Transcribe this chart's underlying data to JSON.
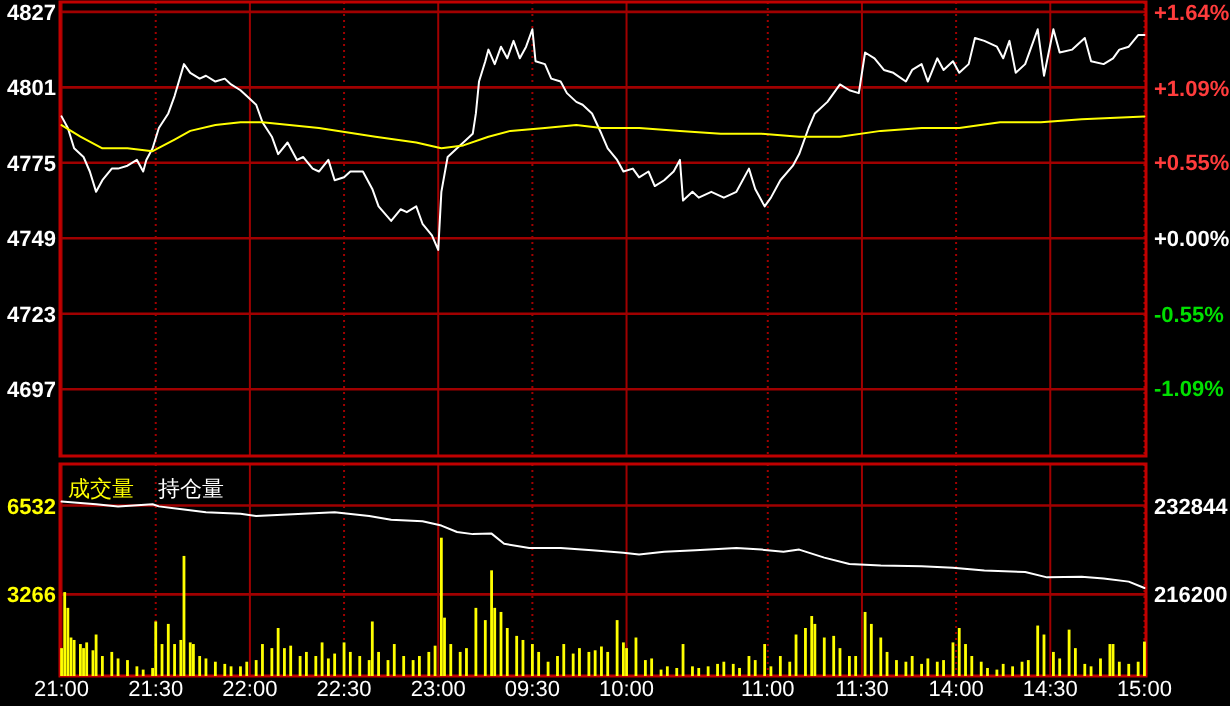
{
  "chart_data": [
    {
      "type": "line",
      "tick_labels": "y",
      "ylim": [
        4674,
        4830.4
      ],
      "yticks": [
        4827,
        4801,
        4775,
        4749,
        4723,
        4697
      ],
      "y2lim": [
        -1.58,
        1.71
      ],
      "y2ticks": [
        {
          "value": 1.64,
          "label": "+1.64%"
        },
        {
          "value": 1.09,
          "label": "+1.09%"
        },
        {
          "value": 0.55,
          "label": "+0.55%"
        },
        {
          "value": 0,
          "label": "+0.00%"
        },
        {
          "value": -0.55,
          "label": "-0.55%"
        },
        {
          "value": -1.09,
          "label": "-1.09%"
        }
      ],
      "grid": true,
      "categories": [
        null,
        null,
        null,
        null,
        null,
        null,
        null,
        null,
        null,
        null,
        null,
        null,
        null,
        null,
        null,
        null,
        null,
        null,
        null,
        null,
        null,
        null,
        null,
        null,
        null,
        null,
        null,
        null,
        null,
        null,
        null,
        null,
        null,
        null,
        null,
        null,
        null,
        null,
        null,
        null,
        null,
        null,
        null,
        null,
        null,
        null,
        null,
        null,
        null,
        null,
        null,
        null,
        null,
        null,
        null,
        null,
        null,
        null,
        null,
        null,
        null,
        null,
        null,
        null,
        null,
        null,
        null,
        null,
        null,
        null,
        null,
        null,
        null,
        null,
        null,
        null,
        null,
        null,
        null,
        null,
        null,
        null,
        null,
        null,
        null,
        null,
        null,
        null,
        null,
        null,
        null,
        null,
        null,
        null,
        null,
        null,
        null,
        null,
        null,
        null,
        null,
        null,
        null,
        null,
        null,
        null,
        null,
        null,
        null,
        null,
        null,
        null,
        null,
        null,
        null,
        null,
        null,
        null,
        null,
        null,
        null,
        null,
        null,
        null,
        null,
        null,
        null,
        null,
        null,
        null,
        null,
        null,
        null,
        null,
        null,
        null,
        null,
        null,
        null,
        null,
        null,
        null,
        null,
        null,
        null,
        null,
        null,
        null,
        null,
        null,
        null,
        null,
        null,
        null,
        null,
        null,
        null,
        null,
        null,
        null,
        null,
        null,
        null,
        null,
        null,
        null,
        null,
        null,
        null,
        null,
        null,
        null,
        null,
        null,
        null,
        null,
        null,
        null,
        null,
        null,
        null,
        null,
        null,
        null,
        null,
        null,
        null,
        null,
        null,
        null,
        null,
        null,
        null,
        null,
        null,
        null,
        null,
        null,
        null,
        null,
        null,
        null,
        null,
        null,
        null,
        null,
        null,
        null,
        null,
        null,
        null,
        null,
        null,
        null,
        null,
        null,
        null,
        null,
        null,
        null,
        null,
        null,
        null,
        null,
        null,
        null,
        null,
        null,
        null,
        null,
        null,
        null,
        null,
        null,
        null,
        null,
        null,
        null,
        null,
        null,
        null,
        null,
        null,
        null,
        null,
        null,
        null,
        null,
        null,
        null,
        null,
        null,
        null,
        null,
        null,
        null,
        null,
        null,
        null,
        null,
        null,
        null,
        null,
        null,
        null,
        null,
        null,
        null,
        null,
        null,
        null,
        null,
        null,
        null,
        null,
        null,
        null,
        null,
        null,
        null,
        null,
        null,
        null,
        null,
        null,
        null,
        null,
        null,
        null,
        null,
        null,
        null,
        null,
        null,
        null,
        null,
        null,
        null,
        null,
        null,
        null,
        null,
        null,
        null,
        null,
        null,
        null,
        null,
        null,
        null,
        null,
        null,
        null,
        null,
        null,
        null,
        null,
        null,
        null,
        null,
        null,
        null,
        null,
        null,
        null,
        null,
        null,
        null,
        null,
        null,
        null,
        null,
        null,
        null,
        null,
        null,
        null,
        null,
        null,
        null,
        null,
        null,
        null,
        null,
        null,
        null
      ],
      "series": [
        {
          "color": "#ffffff",
          "values": [
            4791,
            null,
            4787,
            null,
            4780,
            null,
            null,
            4777,
            null,
            4772,
            null,
            4765,
            null,
            4769,
            null,
            null,
            4773,
            null,
            4773,
            null,
            null,
            4774,
            null,
            null,
            4776,
            null,
            4772,
            4776,
            null,
            4780,
            null,
            4787,
            null,
            null,
            4792,
            null,
            4798,
            null,
            null,
            4809,
            null,
            4806,
            null,
            null,
            4804,
            null,
            4805,
            null,
            null,
            4803,
            null,
            null,
            4804,
            null,
            4802,
            null,
            null,
            4800,
            null,
            4798,
            null,
            null,
            4795,
            null,
            4789,
            null,
            null,
            4784,
            null,
            4778,
            null,
            null,
            4782,
            null,
            null,
            4776,
            null,
            4777,
            null,
            null,
            4773,
            null,
            4772,
            null,
            null,
            4776,
            null,
            4769,
            null,
            null,
            4770,
            null,
            4772,
            null,
            null,
            null,
            4772,
            null,
            null,
            4766,
            null,
            4760,
            null,
            null,
            null,
            4755,
            null,
            null,
            4759,
            null,
            4758,
            null,
            null,
            4760,
            null,
            4754,
            null,
            null,
            4750,
            null,
            4745,
            4765,
            null,
            4777,
            null,
            null,
            4780,
            null,
            4782,
            null,
            null,
            4785,
            4792,
            4803,
            null,
            4810,
            4814,
            null,
            4809,
            null,
            4815,
            null,
            4811,
            null,
            4817,
            null,
            4811,
            null,
            4815,
            null,
            4821,
            4810,
            null,
            null,
            4809,
            null,
            4804,
            null,
            null,
            4803,
            null,
            4799,
            null,
            null,
            4796,
            null,
            4795,
            null,
            null,
            4792,
            null,
            null,
            4785,
            null,
            4780,
            null,
            null,
            4776,
            null,
            4772,
            null,
            null,
            4773,
            null,
            4770,
            null,
            null,
            4772,
            null,
            4767,
            null,
            null,
            4769,
            null,
            null,
            4772,
            null,
            4776,
            4762,
            null,
            null,
            4765,
            null,
            4763,
            null,
            null,
            null,
            4765,
            null,
            null,
            null,
            4763,
            null,
            null,
            null,
            4765,
            null,
            null,
            null,
            4773,
            null,
            4766,
            null,
            null,
            4760,
            null,
            4763,
            null,
            null,
            4769,
            null,
            null,
            null,
            4774,
            null,
            4778,
            null,
            null,
            4787,
            null,
            4792,
            null,
            null,
            null,
            4796,
            null,
            null,
            null,
            4802,
            null,
            null,
            4800,
            null,
            null,
            4799,
            null,
            4813,
            null,
            null,
            4811,
            null,
            null,
            4807,
            null,
            null,
            4806,
            null,
            null,
            null,
            4803,
            null,
            4807,
            null,
            null,
            4809,
            null,
            4803,
            null,
            null,
            4811,
            null,
            4807,
            null,
            null,
            4810,
            null,
            4806,
            null,
            null,
            4809,
            null,
            4818,
            null,
            null,
            4817,
            null,
            null,
            null,
            4815,
            null,
            4811,
            null,
            4817,
            null,
            4806,
            null,
            null,
            4809,
            null,
            4815,
            null,
            4821,
            null,
            4805,
            null,
            null,
            4821,
            null,
            4813,
            null,
            null,
            null,
            4814,
            null,
            null,
            null,
            4818,
            null,
            4810,
            null,
            null,
            null,
            4809,
            null,
            null,
            4811,
            null,
            4814,
            null,
            null,
            4815,
            null,
            null,
            4819,
            null,
            4819
          ]
        },
        {
          "color": "#ffff00",
          "values": [
            4788,
            null,
            null,
            null,
            null,
            null,
            4784,
            null,
            null,
            null,
            null,
            null,
            null,
            4780,
            null,
            null,
            null,
            null,
            null,
            null,
            null,
            4780,
            null,
            null,
            null,
            null,
            null,
            null,
            null,
            4779,
            null,
            null,
            null,
            null,
            null,
            null,
            4783,
            null,
            null,
            null,
            null,
            4786,
            null,
            null,
            null,
            null,
            null,
            null,
            null,
            4788,
            null,
            null,
            null,
            null,
            null,
            null,
            null,
            4789,
            null,
            null,
            null,
            null,
            null,
            null,
            4789,
            null,
            null,
            null,
            null,
            null,
            null,
            null,
            null,
            null,
            null,
            null,
            null,
            null,
            null,
            null,
            null,
            null,
            4787,
            null,
            null,
            null,
            null,
            null,
            null,
            null,
            null,
            null,
            null,
            null,
            null,
            null,
            null,
            null,
            null,
            null,
            4784,
            null,
            null,
            null,
            null,
            null,
            null,
            null,
            null,
            null,
            null,
            null,
            null,
            4782,
            null,
            null,
            null,
            null,
            null,
            null,
            null,
            4780,
            null,
            null,
            null,
            null,
            null,
            null,
            4781,
            null,
            null,
            null,
            null,
            null,
            null,
            null,
            4784,
            null,
            null,
            null,
            null,
            null,
            null,
            4786,
            null,
            null,
            null,
            null,
            null,
            null,
            null,
            null,
            null,
            null,
            4787,
            null,
            null,
            null,
            null,
            null,
            null,
            null,
            null,
            null,
            4788,
            null,
            null,
            null,
            null,
            null,
            null,
            null,
            4787,
            null,
            null,
            null,
            null,
            null,
            null,
            null,
            null,
            null,
            null,
            null,
            4787,
            null,
            null,
            null,
            null,
            null,
            null,
            null,
            null,
            null,
            null,
            null,
            null,
            4786,
            null,
            null,
            null,
            null,
            null,
            null,
            null,
            null,
            null,
            null,
            null,
            null,
            4785,
            null,
            null,
            null,
            null,
            null,
            null,
            null,
            null,
            null,
            null,
            null,
            null,
            4785,
            null,
            null,
            null,
            null,
            null,
            null,
            null,
            null,
            null,
            null,
            null,
            4784,
            null,
            null,
            null,
            null,
            null,
            null,
            null,
            null,
            null,
            null,
            null,
            null,
            4784,
            null,
            null,
            null,
            null,
            null,
            null,
            null,
            null,
            null,
            null,
            null,
            null,
            4786,
            null,
            null,
            null,
            null,
            null,
            null,
            null,
            null,
            null,
            null,
            null,
            null,
            4787,
            null,
            null,
            null,
            null,
            null,
            null,
            null,
            null,
            null,
            null,
            null,
            4787,
            null,
            null,
            null,
            null,
            null,
            null,
            null,
            null,
            null,
            null,
            null,
            null,
            4789,
            null,
            null,
            null,
            null,
            null,
            null,
            null,
            null,
            null,
            null,
            null,
            null,
            4789,
            null,
            null,
            null,
            null,
            null,
            null,
            null,
            null,
            null,
            null,
            null,
            null,
            4790,
            null,
            null,
            null,
            null,
            null,
            null,
            null,
            null,
            null,
            null,
            null,
            null,
            null,
            null,
            null,
            null,
            null,
            null,
            null,
            4791
          ]
        }
      ]
    },
    {
      "type": "bar",
      "ylim": [
        265,
        8060
      ],
      "yticks": [
        6532,
        3266
      ],
      "y2lim": [
        200915,
        240640
      ],
      "y2ticks": [
        232844,
        216200
      ],
      "grid": true,
      "legend": "top left",
      "categories": [
        "21:00",
        null,
        null,
        null,
        null,
        null,
        null,
        null,
        null,
        null,
        null,
        null,
        null,
        null,
        null,
        null,
        null,
        null,
        null,
        null,
        null,
        null,
        null,
        null,
        null,
        null,
        null,
        null,
        null,
        null,
        "21:30",
        null,
        null,
        null,
        null,
        null,
        null,
        null,
        null,
        null,
        null,
        null,
        null,
        null,
        null,
        null,
        null,
        null,
        null,
        null,
        null,
        null,
        null,
        null,
        null,
        null,
        null,
        null,
        null,
        null,
        "22:00",
        null,
        null,
        null,
        null,
        null,
        null,
        null,
        null,
        null,
        null,
        null,
        null,
        null,
        null,
        null,
        null,
        null,
        null,
        null,
        null,
        null,
        null,
        null,
        null,
        null,
        null,
        null,
        null,
        null,
        "22:30",
        null,
        null,
        null,
        null,
        null,
        null,
        null,
        null,
        null,
        null,
        null,
        null,
        null,
        null,
        null,
        null,
        null,
        null,
        null,
        null,
        null,
        null,
        null,
        null,
        null,
        null,
        null,
        null,
        null,
        "23:00",
        null,
        null,
        null,
        null,
        null,
        null,
        null,
        null,
        null,
        null,
        null,
        null,
        null,
        null,
        null,
        null,
        null,
        null,
        null,
        null,
        null,
        null,
        null,
        null,
        null,
        null,
        null,
        null,
        null,
        "09:30",
        null,
        null,
        null,
        null,
        null,
        null,
        null,
        null,
        null,
        null,
        null,
        null,
        null,
        null,
        null,
        null,
        null,
        null,
        null,
        null,
        null,
        null,
        null,
        null,
        null,
        null,
        null,
        null,
        null,
        "10:00",
        null,
        null,
        null,
        null,
        null,
        null,
        null,
        null,
        null,
        null,
        null,
        null,
        null,
        null,
        null,
        null,
        null,
        null,
        null,
        null,
        null,
        null,
        null,
        null,
        null,
        null,
        null,
        null,
        null,
        null,
        null,
        null,
        null,
        null,
        null,
        null,
        null,
        null,
        null,
        null,
        null,
        null,
        null,
        null,
        "11:00",
        null,
        null,
        null,
        null,
        null,
        null,
        null,
        null,
        null,
        null,
        null,
        null,
        null,
        null,
        null,
        null,
        null,
        null,
        null,
        null,
        null,
        null,
        null,
        null,
        null,
        null,
        null,
        null,
        null,
        "11:30",
        null,
        null,
        null,
        null,
        null,
        null,
        null,
        null,
        null,
        null,
        null,
        null,
        null,
        null,
        null,
        null,
        null,
        null,
        null,
        null,
        null,
        null,
        null,
        null,
        null,
        null,
        null,
        null,
        null,
        "14:00",
        null,
        null,
        null,
        null,
        null,
        null,
        null,
        null,
        null,
        null,
        null,
        null,
        null,
        null,
        null,
        null,
        null,
        null,
        null,
        null,
        null,
        null,
        null,
        null,
        null,
        null,
        null,
        null,
        null,
        "14:30",
        null,
        null,
        null,
        null,
        null,
        null,
        null,
        null,
        null,
        null,
        null,
        null,
        null,
        null,
        null,
        null,
        null,
        null,
        null,
        null,
        null,
        null,
        null,
        null,
        null,
        null,
        null,
        null,
        null,
        "15:00"
      ],
      "series": [
        {
          "name": "成交量",
          "color": "#ffff00",
          "values": [
            1290,
            3350,
            2770,
            1680,
            1590,
            null,
            1440,
            1290,
            1500,
            null,
            1210,
            1790,
            null,
            1000,
            null,
            null,
            1150,
            null,
            910,
            null,
            null,
            850,
            null,
            null,
            620,
            null,
            500,
            null,
            null,
            560,
            2270,
            null,
            1440,
            null,
            2180,
            null,
            1440,
            null,
            1590,
            4680,
            null,
            1500,
            1440,
            null,
            1000,
            null,
            910,
            null,
            null,
            790,
            null,
            null,
            710,
            null,
            620,
            null,
            null,
            620,
            null,
            790,
            null,
            null,
            850,
            null,
            1440,
            null,
            null,
            1290,
            null,
            2030,
            null,
            1290,
            null,
            1380,
            null,
            null,
            1000,
            null,
            1150,
            null,
            null,
            1000,
            null,
            1500,
            null,
            910,
            null,
            1090,
            null,
            null,
            1500,
            null,
            1150,
            null,
            null,
            1000,
            null,
            null,
            850,
            2270,
            null,
            1150,
            null,
            null,
            850,
            null,
            1440,
            null,
            null,
            1000,
            null,
            null,
            850,
            null,
            1000,
            null,
            null,
            1150,
            null,
            1380,
            null,
            5350,
            2410,
            null,
            1440,
            null,
            null,
            1150,
            null,
            1290,
            null,
            null,
            2770,
            null,
            null,
            2320,
            null,
            4150,
            2770,
            null,
            2620,
            null,
            2030,
            null,
            null,
            1740,
            null,
            1590,
            null,
            null,
            1440,
            null,
            1150,
            null,
            null,
            790,
            null,
            null,
            1000,
            null,
            1440,
            null,
            null,
            1090,
            null,
            1290,
            null,
            null,
            1150,
            null,
            1210,
            null,
            1350,
            null,
            1150,
            null,
            null,
            2320,
            null,
            1500,
            1290,
            null,
            null,
            1680,
            null,
            null,
            850,
            null,
            910,
            null,
            null,
            500,
            null,
            620,
            null,
            null,
            560,
            null,
            1440,
            null,
            null,
            620,
            null,
            560,
            null,
            null,
            620,
            null,
            null,
            710,
            null,
            790,
            null,
            null,
            710,
            null,
            560,
            null,
            null,
            1000,
            null,
            850,
            null,
            null,
            1440,
            null,
            620,
            null,
            null,
            1000,
            null,
            null,
            790,
            null,
            1790,
            null,
            null,
            2030,
            null,
            2470,
            2180,
            null,
            null,
            1680,
            null,
            null,
            1740,
            null,
            1290,
            null,
            null,
            1000,
            null,
            1000,
            null,
            null,
            2620,
            null,
            2180,
            null,
            null,
            1680,
            null,
            1150,
            null,
            null,
            850,
            null,
            null,
            790,
            null,
            1000,
            null,
            null,
            710,
            null,
            910,
            null,
            null,
            790,
            null,
            850,
            null,
            null,
            1500,
            null,
            2030,
            null,
            1440,
            null,
            1000,
            null,
            null,
            790,
            null,
            560,
            null,
            null,
            500,
            null,
            710,
            null,
            null,
            620,
            null,
            null,
            790,
            null,
            850,
            null,
            null,
            2120,
            null,
            1790,
            null,
            null,
            1150,
            null,
            910,
            null,
            null,
            1970,
            null,
            1290,
            null,
            null,
            710,
            null,
            620,
            null,
            null,
            910,
            null,
            null,
            1440,
            1440,
            null,
            790,
            null,
            null,
            710,
            null,
            null,
            790,
            null,
            1530
          ]
        },
        {
          "name": "持仓量",
          "type": "line",
          "axis": "y2",
          "color": "#ffffff",
          "values": [
            233600,
            null,
            null,
            null,
            null,
            null,
            null,
            null,
            null,
            null,
            null,
            233100,
            null,
            null,
            null,
            null,
            null,
            null,
            232700,
            null,
            null,
            null,
            null,
            null,
            null,
            null,
            null,
            null,
            null,
            233100,
            null,
            232700,
            null,
            null,
            null,
            null,
            null,
            null,
            null,
            232100,
            null,
            null,
            null,
            null,
            null,
            null,
            231600,
            null,
            null,
            null,
            null,
            null,
            null,
            null,
            null,
            null,
            null,
            231300,
            null,
            null,
            null,
            null,
            230900,
            null,
            null,
            null,
            null,
            null,
            null,
            null,
            null,
            null,
            231200,
            null,
            null,
            null,
            null,
            null,
            null,
            null,
            null,
            null,
            null,
            null,
            null,
            null,
            null,
            231600,
            null,
            null,
            null,
            null,
            null,
            null,
            null,
            null,
            null,
            null,
            230900,
            null,
            null,
            null,
            null,
            null,
            null,
            230200,
            null,
            null,
            null,
            null,
            null,
            null,
            null,
            null,
            null,
            229900,
            null,
            null,
            null,
            null,
            null,
            229100,
            null,
            null,
            null,
            null,
            227900,
            null,
            null,
            null,
            null,
            227500,
            null,
            null,
            null,
            null,
            null,
            227600,
            null,
            null,
            null,
            225700,
            null,
            null,
            null,
            null,
            null,
            null,
            null,
            224900,
            null,
            null,
            null,
            null,
            null,
            null,
            null,
            null,
            null,
            224900,
            null,
            null,
            null,
            null,
            null,
            null,
            null,
            null,
            null,
            224500,
            null,
            null,
            null,
            null,
            null,
            null,
            null,
            null,
            null,
            224000,
            null,
            null,
            null,
            null,
            223700,
            null,
            null,
            null,
            null,
            null,
            null,
            null,
            224200,
            null,
            null,
            null,
            null,
            null,
            null,
            null,
            null,
            null,
            224500,
            null,
            null,
            null,
            null,
            null,
            null,
            null,
            null,
            null,
            null,
            null,
            null,
            224900,
            null,
            null,
            null,
            null,
            null,
            null,
            null,
            224600,
            null,
            null,
            null,
            null,
            null,
            null,
            224200,
            null,
            null,
            null,
            null,
            224600,
            null,
            null,
            null,
            null,
            null,
            null,
            null,
            223100,
            null,
            null,
            null,
            null,
            null,
            null,
            null,
            221900,
            null,
            null,
            null,
            null,
            null,
            null,
            null,
            null,
            null,
            221600,
            null,
            null,
            null,
            null,
            null,
            null,
            null,
            null,
            null,
            null,
            null,
            null,
            221500,
            null,
            null,
            null,
            null,
            null,
            null,
            null,
            null,
            null,
            221200,
            null,
            null,
            null,
            null,
            null,
            null,
            null,
            null,
            null,
            220700,
            null,
            null,
            null,
            null,
            null,
            null,
            null,
            null,
            null,
            null,
            null,
            null,
            220400,
            null,
            null,
            null,
            null,
            null,
            null,
            219400,
            null,
            null,
            null,
            null,
            null,
            null,
            null,
            null,
            null,
            null,
            219500,
            null,
            null,
            null,
            null,
            null,
            null,
            219200,
            null,
            null,
            null,
            null,
            null,
            null,
            null,
            218600,
            null,
            null,
            null,
            null,
            217400
          ]
        }
      ]
    }
  ]
}
